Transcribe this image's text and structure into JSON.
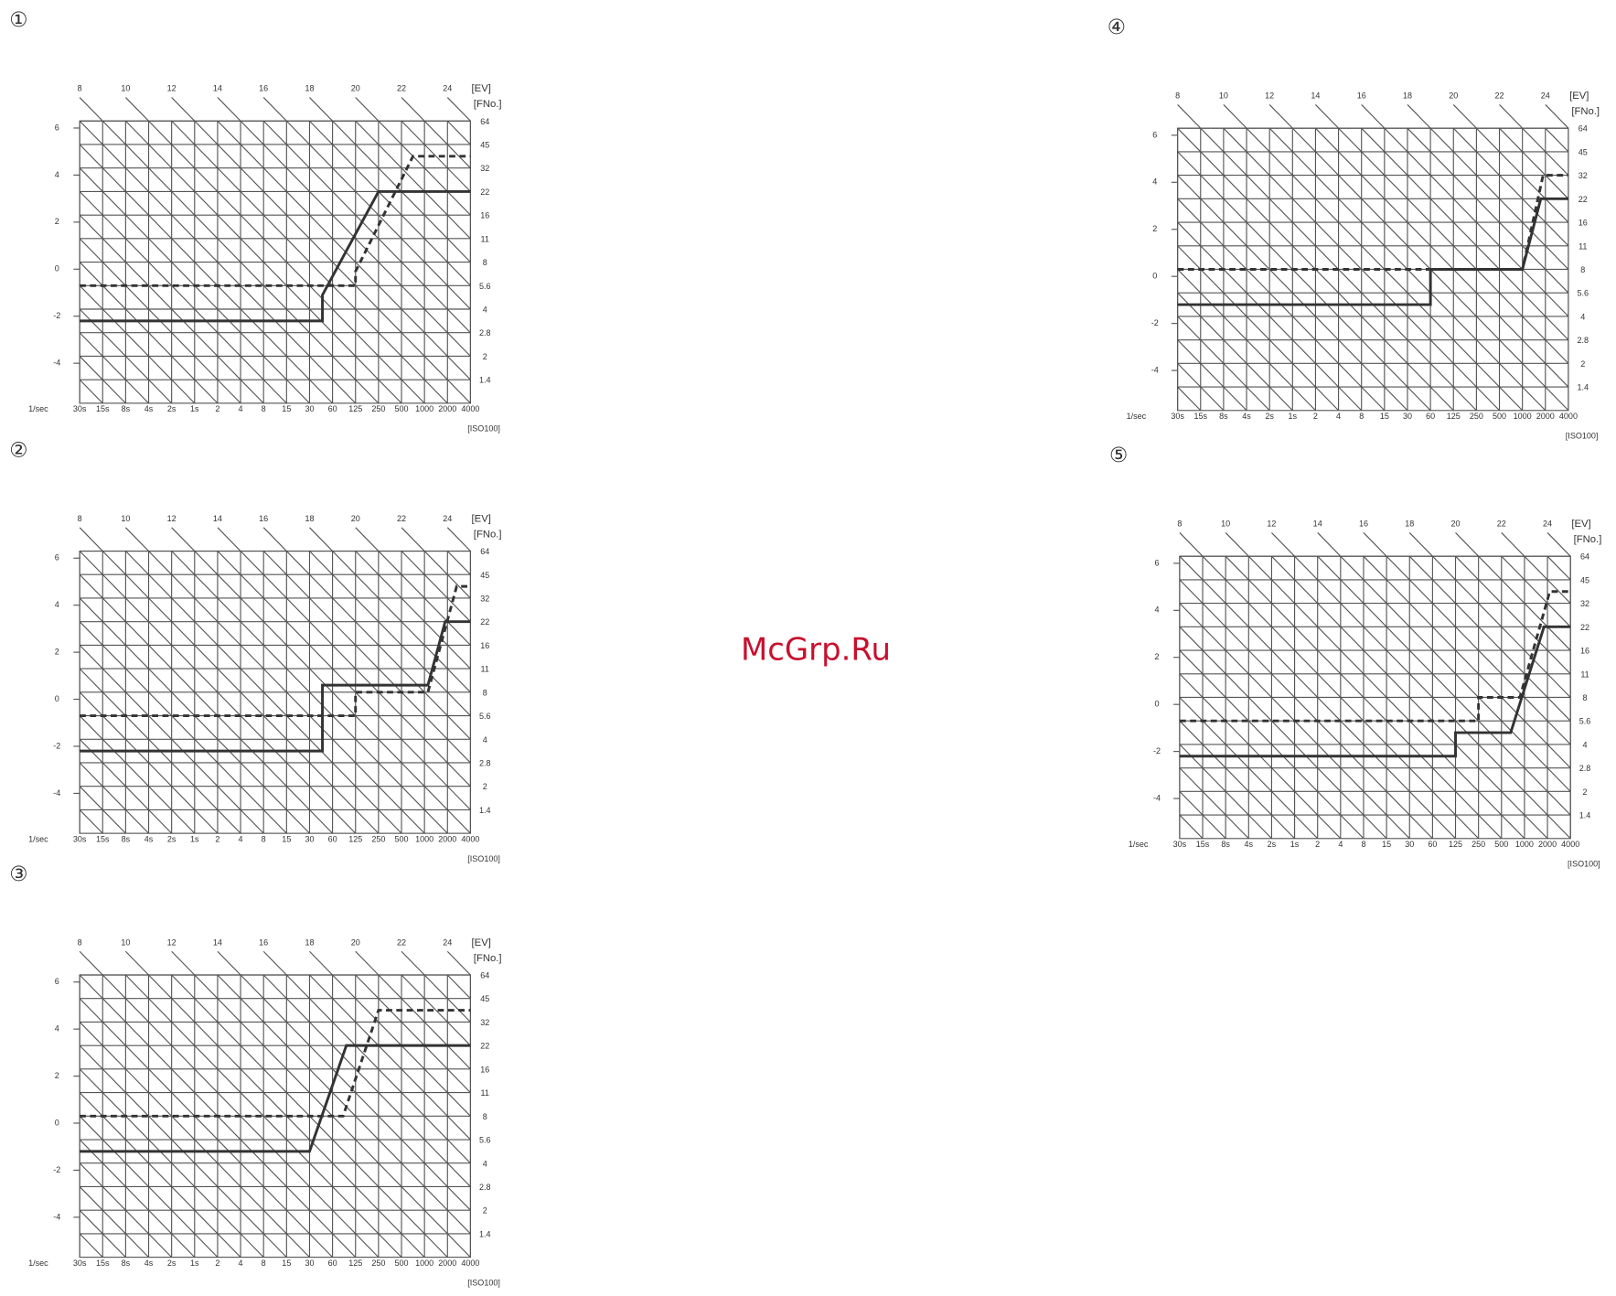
{
  "watermark": "McGrp.Ru",
  "chart_data": [
    {
      "type": "line",
      "title": "①",
      "xlabel": "1/sec",
      "x2_label": "[EV]",
      "y2_label": "[FNo.]",
      "note": "[ISO100]",
      "grid": true,
      "color": "#333333",
      "xlim": [
        0,
        17
      ],
      "xticks": [
        {
          "value": 0,
          "label": "30s"
        },
        {
          "value": 1,
          "label": "15s"
        },
        {
          "value": 2,
          "label": "8s"
        },
        {
          "value": 3,
          "label": "4s"
        },
        {
          "value": 4,
          "label": "2s"
        },
        {
          "value": 5,
          "label": "1s"
        },
        {
          "value": 6,
          "label": "2"
        },
        {
          "value": 7,
          "label": "4"
        },
        {
          "value": 8,
          "label": "8"
        },
        {
          "value": 9,
          "label": "15"
        },
        {
          "value": 10,
          "label": "30"
        },
        {
          "value": 11,
          "label": "60"
        },
        {
          "value": 12,
          "label": "125"
        },
        {
          "value": 13,
          "label": "250"
        },
        {
          "value": 14,
          "label": "500"
        },
        {
          "value": 15,
          "label": "1000"
        },
        {
          "value": 16,
          "label": "2000"
        },
        {
          "value": 17,
          "label": "4000"
        }
      ],
      "x2lim": [
        8,
        25
      ],
      "x2ticks": [
        8,
        10,
        12,
        14,
        16,
        18,
        20,
        22,
        24
      ],
      "ylim": [
        -5.7,
        6.3
      ],
      "yticks": [
        -4,
        -2,
        0,
        2,
        4,
        6
      ],
      "y2lim": [
        0,
        12
      ],
      "y2ticks": [
        {
          "value": 1,
          "label": "1.4"
        },
        2,
        {
          "value": 3,
          "label": "2.8"
        },
        4,
        {
          "value": 5,
          "label": "5.6"
        },
        {
          "value": 6,
          "label": "8"
        },
        {
          "value": 7,
          "label": "11"
        },
        {
          "value": 8,
          "label": "16"
        },
        {
          "value": 9,
          "label": "22"
        },
        {
          "value": 10,
          "label": "32"
        },
        {
          "value": 11,
          "label": "45"
        },
        {
          "value": 12,
          "label": "64"
        }
      ],
      "series": [
        {
          "line_style": "solid",
          "axis": "y2",
          "x": [
            0,
            10.56,
            10.56,
            13,
            17
          ],
          "values": [
            3.5,
            3.5,
            4.6,
            9,
            9
          ]
        },
        {
          "line_style": "dashed",
          "axis": "y2",
          "x": [
            0,
            12,
            12,
            14.5,
            17
          ],
          "values": [
            5,
            5,
            5.6,
            10.5,
            10.5
          ]
        }
      ]
    },
    {
      "type": "line",
      "title": "②",
      "xlabel": "1/sec",
      "x2_label": "[EV]",
      "y2_label": "[FNo.]",
      "note": "[ISO100]",
      "grid": true,
      "color": "#333333",
      "xlim": [
        0,
        17
      ],
      "xticks": [
        {
          "value": 0,
          "label": "30s"
        },
        {
          "value": 1,
          "label": "15s"
        },
        {
          "value": 2,
          "label": "8s"
        },
        {
          "value": 3,
          "label": "4s"
        },
        {
          "value": 4,
          "label": "2s"
        },
        {
          "value": 5,
          "label": "1s"
        },
        {
          "value": 6,
          "label": "2"
        },
        {
          "value": 7,
          "label": "4"
        },
        {
          "value": 8,
          "label": "8"
        },
        {
          "value": 9,
          "label": "15"
        },
        {
          "value": 10,
          "label": "30"
        },
        {
          "value": 11,
          "label": "60"
        },
        {
          "value": 12,
          "label": "125"
        },
        {
          "value": 13,
          "label": "250"
        },
        {
          "value": 14,
          "label": "500"
        },
        {
          "value": 15,
          "label": "1000"
        },
        {
          "value": 16,
          "label": "2000"
        },
        {
          "value": 17,
          "label": "4000"
        }
      ],
      "x2lim": [
        8,
        25
      ],
      "x2ticks": [
        8,
        10,
        12,
        14,
        16,
        18,
        20,
        22,
        24
      ],
      "ylim": [
        -5.7,
        6.3
      ],
      "yticks": [
        -4,
        -2,
        0,
        2,
        4,
        6
      ],
      "y2lim": [
        0,
        12
      ],
      "y2ticks": [
        {
          "value": 1,
          "label": "1.4"
        },
        2,
        {
          "value": 3,
          "label": "2.8"
        },
        4,
        {
          "value": 5,
          "label": "5.6"
        },
        {
          "value": 6,
          "label": "8"
        },
        {
          "value": 7,
          "label": "11"
        },
        {
          "value": 8,
          "label": "16"
        },
        {
          "value": 9,
          "label": "22"
        },
        {
          "value": 10,
          "label": "32"
        },
        {
          "value": 11,
          "label": "45"
        },
        {
          "value": 12,
          "label": "64"
        }
      ],
      "series": [
        {
          "line_style": "solid",
          "axis": "y2",
          "x": [
            0,
            10.56,
            10.56,
            15.15,
            15.9,
            17
          ],
          "values": [
            3.5,
            3.5,
            6.3,
            6.3,
            9,
            9
          ]
        },
        {
          "line_style": "dashed",
          "axis": "y2",
          "x": [
            0,
            12,
            12,
            15.15,
            16.4,
            17
          ],
          "values": [
            5,
            5,
            6,
            6,
            10.5,
            10.5
          ]
        }
      ]
    },
    {
      "type": "line",
      "title": "③",
      "xlabel": "1/sec",
      "x2_label": "[EV]",
      "y2_label": "[FNo.]",
      "note": "[ISO100]",
      "grid": true,
      "color": "#333333",
      "xlim": [
        0,
        17
      ],
      "xticks": [
        {
          "value": 0,
          "label": "30s"
        },
        {
          "value": 1,
          "label": "15s"
        },
        {
          "value": 2,
          "label": "8s"
        },
        {
          "value": 3,
          "label": "4s"
        },
        {
          "value": 4,
          "label": "2s"
        },
        {
          "value": 5,
          "label": "1s"
        },
        {
          "value": 6,
          "label": "2"
        },
        {
          "value": 7,
          "label": "4"
        },
        {
          "value": 8,
          "label": "8"
        },
        {
          "value": 9,
          "label": "15"
        },
        {
          "value": 10,
          "label": "30"
        },
        {
          "value": 11,
          "label": "60"
        },
        {
          "value": 12,
          "label": "125"
        },
        {
          "value": 13,
          "label": "250"
        },
        {
          "value": 14,
          "label": "500"
        },
        {
          "value": 15,
          "label": "1000"
        },
        {
          "value": 16,
          "label": "2000"
        },
        {
          "value": 17,
          "label": "4000"
        }
      ],
      "x2lim": [
        8,
        25
      ],
      "x2ticks": [
        8,
        10,
        12,
        14,
        16,
        18,
        20,
        22,
        24
      ],
      "ylim": [
        -5.7,
        6.3
      ],
      "yticks": [
        -4,
        -2,
        0,
        2,
        4,
        6
      ],
      "y2lim": [
        0,
        12
      ],
      "y2ticks": [
        {
          "value": 1,
          "label": "1.4"
        },
        2,
        {
          "value": 3,
          "label": "2.8"
        },
        4,
        {
          "value": 5,
          "label": "5.6"
        },
        {
          "value": 6,
          "label": "8"
        },
        {
          "value": 7,
          "label": "11"
        },
        {
          "value": 8,
          "label": "16"
        },
        {
          "value": 9,
          "label": "22"
        },
        {
          "value": 10,
          "label": "32"
        },
        {
          "value": 11,
          "label": "45"
        },
        {
          "value": 12,
          "label": "64"
        }
      ],
      "series": [
        {
          "line_style": "solid",
          "axis": "y2",
          "x": [
            0,
            10,
            11.6,
            17
          ],
          "values": [
            4.5,
            4.5,
            9,
            9
          ]
        },
        {
          "line_style": "dashed",
          "axis": "y2",
          "x": [
            0,
            11.46,
            13,
            17
          ],
          "values": [
            6,
            6,
            10.5,
            10.5
          ]
        }
      ]
    },
    {
      "type": "line",
      "title": "④",
      "xlabel": "1/sec",
      "x2_label": "[EV]",
      "y2_label": "[FNo.]",
      "note": "[ISO100]",
      "grid": true,
      "color": "#333333",
      "xlim": [
        0,
        17
      ],
      "xticks": [
        {
          "value": 0,
          "label": "30s"
        },
        {
          "value": 1,
          "label": "15s"
        },
        {
          "value": 2,
          "label": "8s"
        },
        {
          "value": 3,
          "label": "4s"
        },
        {
          "value": 4,
          "label": "2s"
        },
        {
          "value": 5,
          "label": "1s"
        },
        {
          "value": 6,
          "label": "2"
        },
        {
          "value": 7,
          "label": "4"
        },
        {
          "value": 8,
          "label": "8"
        },
        {
          "value": 9,
          "label": "15"
        },
        {
          "value": 10,
          "label": "30"
        },
        {
          "value": 11,
          "label": "60"
        },
        {
          "value": 12,
          "label": "125"
        },
        {
          "value": 13,
          "label": "250"
        },
        {
          "value": 14,
          "label": "500"
        },
        {
          "value": 15,
          "label": "1000"
        },
        {
          "value": 16,
          "label": "2000"
        },
        {
          "value": 17,
          "label": "4000"
        }
      ],
      "x2lim": [
        8,
        25
      ],
      "x2ticks": [
        8,
        10,
        12,
        14,
        16,
        18,
        20,
        22,
        24
      ],
      "ylim": [
        -5.7,
        6.3
      ],
      "yticks": [
        -4,
        -2,
        0,
        2,
        4,
        6
      ],
      "y2lim": [
        0,
        12
      ],
      "y2ticks": [
        {
          "value": 1,
          "label": "1.4"
        },
        2,
        {
          "value": 3,
          "label": "2.8"
        },
        4,
        {
          "value": 5,
          "label": "5.6"
        },
        {
          "value": 6,
          "label": "8"
        },
        {
          "value": 7,
          "label": "11"
        },
        {
          "value": 8,
          "label": "16"
        },
        {
          "value": 9,
          "label": "22"
        },
        {
          "value": 10,
          "label": "32"
        },
        {
          "value": 11,
          "label": "45"
        },
        {
          "value": 12,
          "label": "64"
        }
      ],
      "series": [
        {
          "line_style": "solid",
          "axis": "y2",
          "x": [
            0,
            11,
            11,
            15,
            15.8,
            17
          ],
          "values": [
            4.5,
            4.5,
            6,
            6,
            9,
            9
          ]
        },
        {
          "line_style": "dashed",
          "axis": "y2",
          "x": [
            0,
            15,
            15.9,
            17
          ],
          "values": [
            6,
            6,
            10,
            10
          ]
        }
      ]
    },
    {
      "type": "line",
      "title": "⑤",
      "xlabel": "1/sec",
      "x2_label": "[EV]",
      "y2_label": "[FNo.]",
      "note": "[ISO100]",
      "grid": true,
      "color": "#333333",
      "xlim": [
        0,
        17
      ],
      "xticks": [
        {
          "value": 0,
          "label": "30s"
        },
        {
          "value": 1,
          "label": "15s"
        },
        {
          "value": 2,
          "label": "8s"
        },
        {
          "value": 3,
          "label": "4s"
        },
        {
          "value": 4,
          "label": "2s"
        },
        {
          "value": 5,
          "label": "1s"
        },
        {
          "value": 6,
          "label": "2"
        },
        {
          "value": 7,
          "label": "4"
        },
        {
          "value": 8,
          "label": "8"
        },
        {
          "value": 9,
          "label": "15"
        },
        {
          "value": 10,
          "label": "30"
        },
        {
          "value": 11,
          "label": "60"
        },
        {
          "value": 12,
          "label": "125"
        },
        {
          "value": 13,
          "label": "250"
        },
        {
          "value": 14,
          "label": "500"
        },
        {
          "value": 15,
          "label": "1000"
        },
        {
          "value": 16,
          "label": "2000"
        },
        {
          "value": 17,
          "label": "4000"
        }
      ],
      "x2lim": [
        8,
        25
      ],
      "x2ticks": [
        8,
        10,
        12,
        14,
        16,
        18,
        20,
        22,
        24
      ],
      "ylim": [
        -5.7,
        6.3
      ],
      "yticks": [
        -4,
        -2,
        0,
        2,
        4,
        6
      ],
      "y2lim": [
        0,
        12
      ],
      "y2ticks": [
        {
          "value": 1,
          "label": "1.4"
        },
        2,
        {
          "value": 3,
          "label": "2.8"
        },
        4,
        {
          "value": 5,
          "label": "5.6"
        },
        {
          "value": 6,
          "label": "8"
        },
        {
          "value": 7,
          "label": "11"
        },
        {
          "value": 8,
          "label": "16"
        },
        {
          "value": 9,
          "label": "22"
        },
        {
          "value": 10,
          "label": "32"
        },
        {
          "value": 11,
          "label": "45"
        },
        {
          "value": 12,
          "label": "64"
        }
      ],
      "series": [
        {
          "line_style": "solid",
          "axis": "y2",
          "x": [
            0,
            12,
            12,
            14.4,
            15.85,
            17
          ],
          "values": [
            3.5,
            3.5,
            4.5,
            4.5,
            9,
            9
          ]
        },
        {
          "line_style": "dashed",
          "axis": "y2",
          "x": [
            0,
            13,
            13,
            14.8,
            16.1,
            17
          ],
          "values": [
            5,
            5,
            6,
            6,
            10.5,
            10.5
          ]
        }
      ]
    }
  ]
}
